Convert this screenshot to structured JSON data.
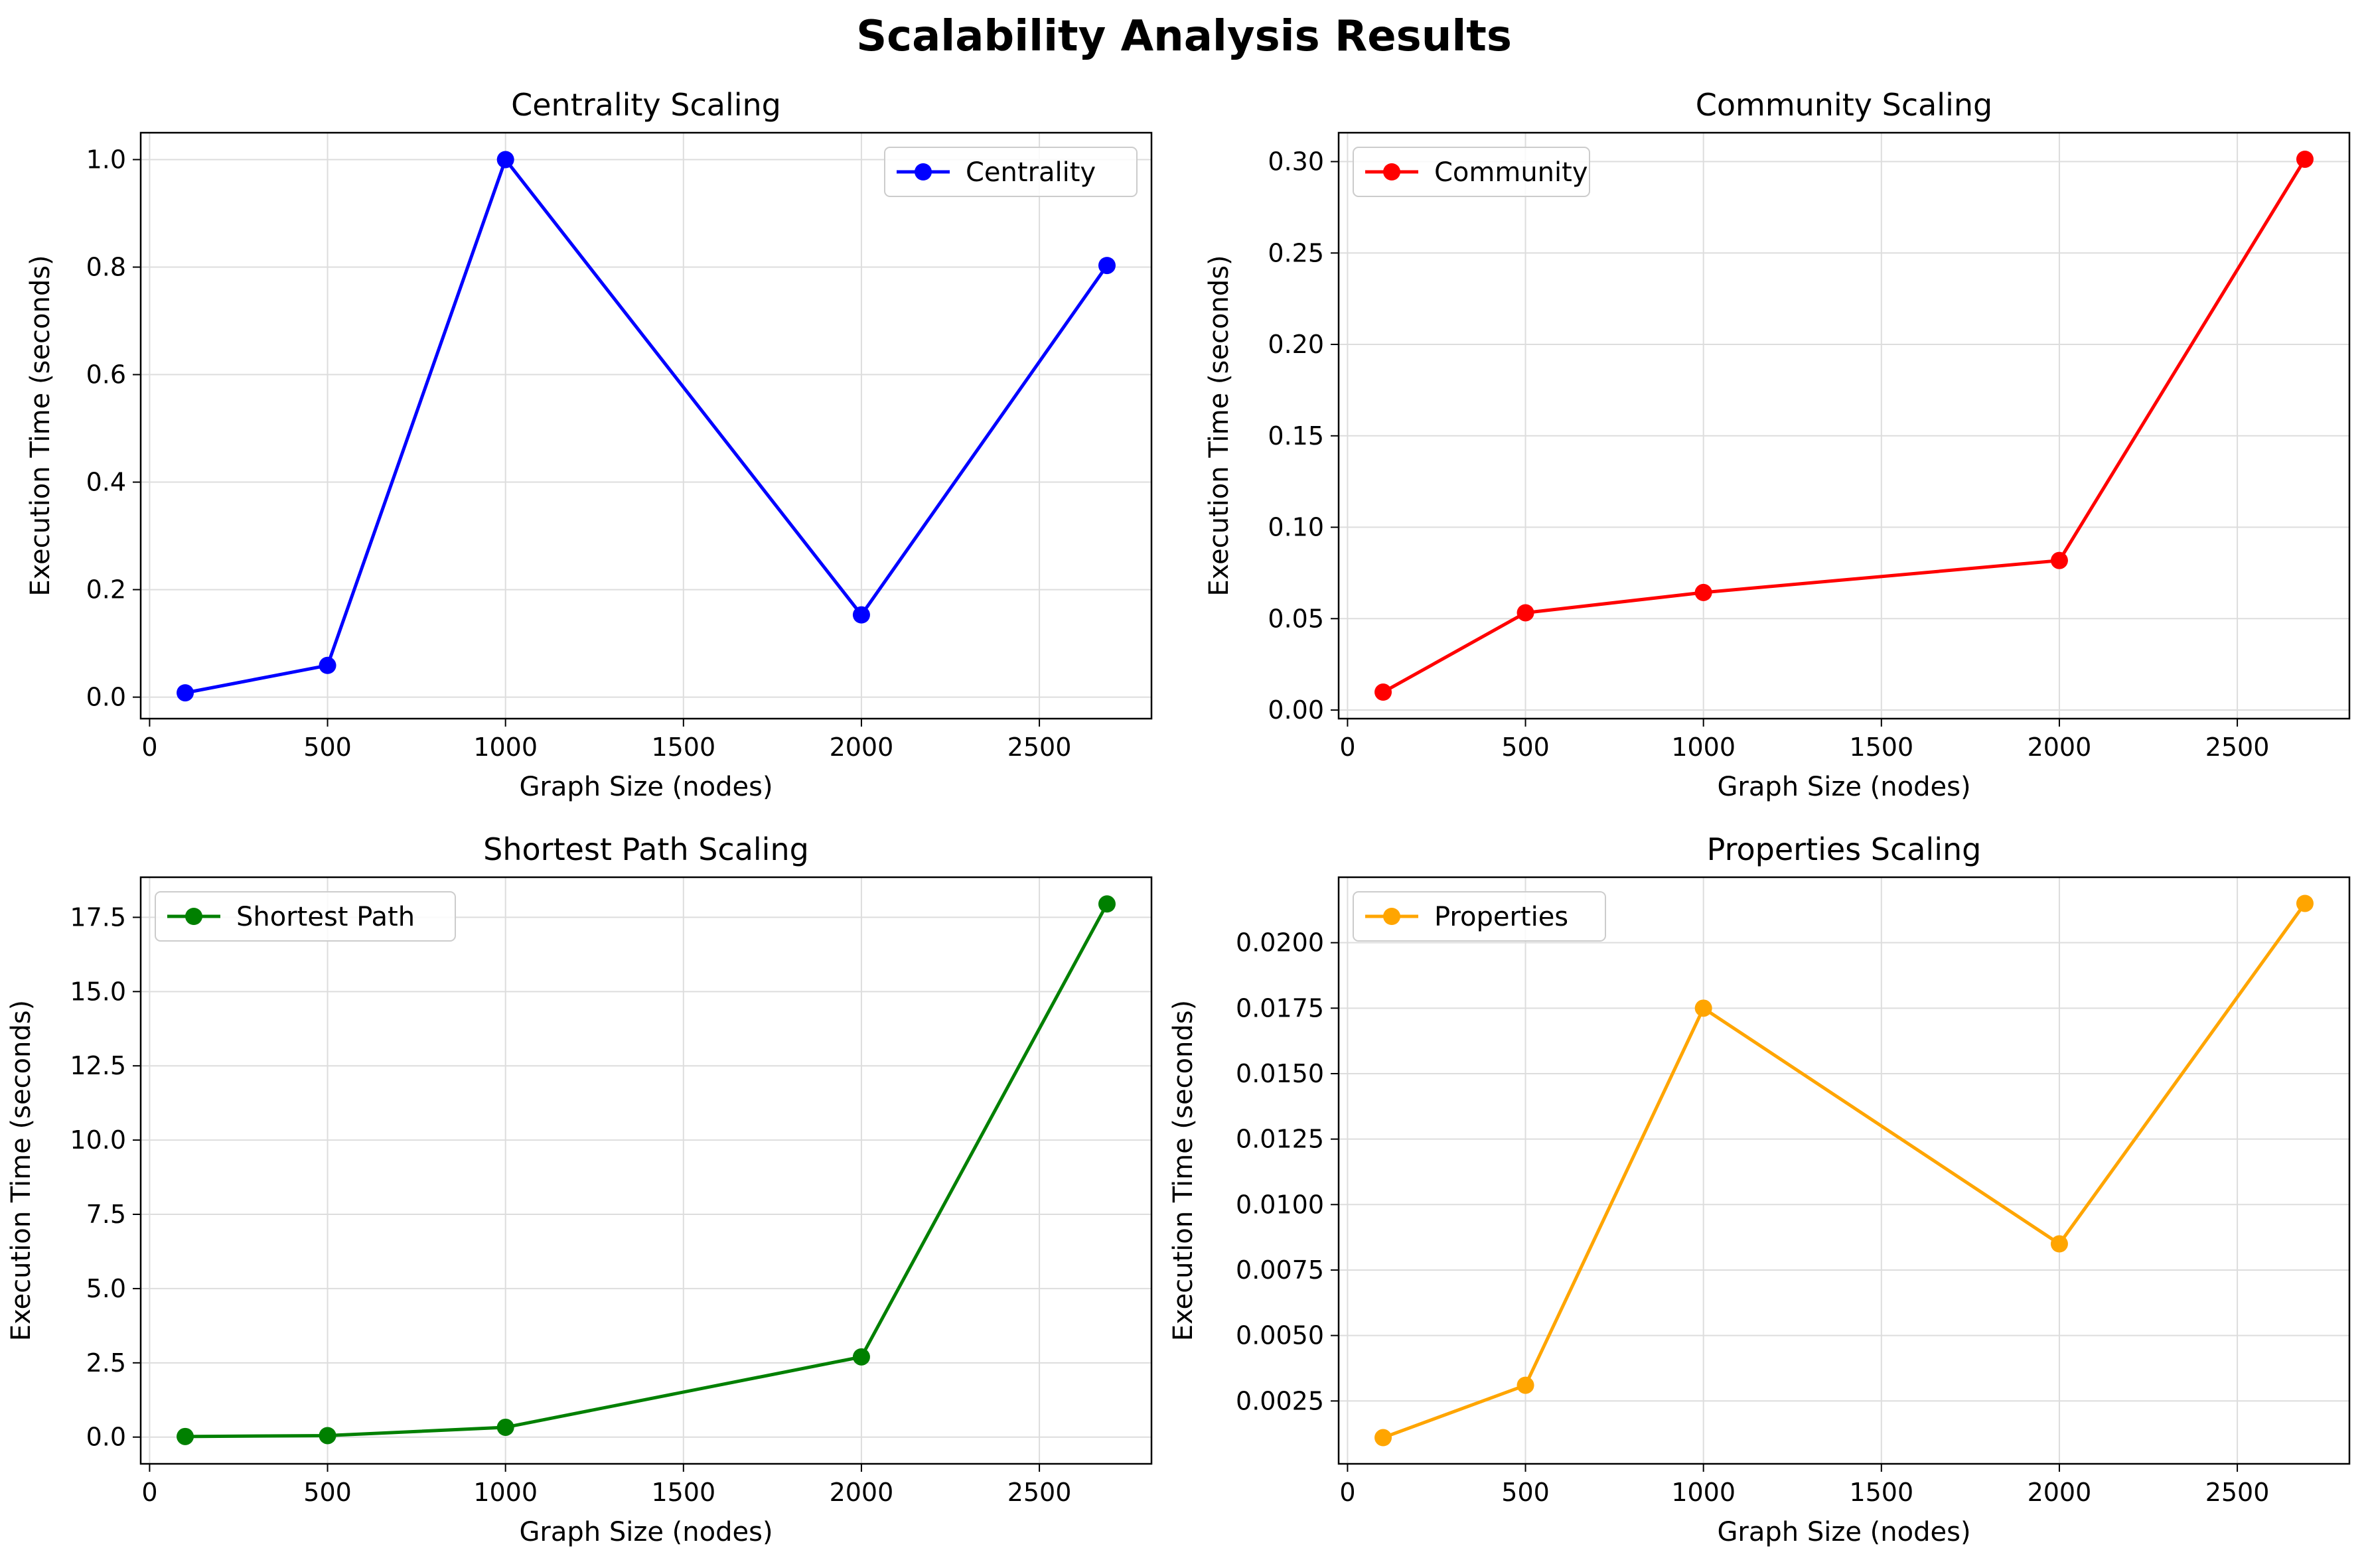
{
  "suptitle": "Scalability Analysis Results",
  "chart_data": [
    {
      "type": "line",
      "title": "Centrality Scaling",
      "xlabel": "Graph Size (nodes)",
      "ylabel": "Execution Time (seconds)",
      "x": [
        100,
        500,
        1000,
        2000,
        2690
      ],
      "series": [
        {
          "name": "Centrality",
          "color": "#0000ff",
          "values": [
            0.008,
            0.059,
            1.0,
            0.153,
            0.803
          ]
        }
      ],
      "xlim": [
        -25,
        2815
      ],
      "ylim": [
        -0.04,
        1.05
      ],
      "xticks": [
        0,
        500,
        1000,
        1500,
        2000,
        2500
      ],
      "xtick_labels": [
        "0",
        "500",
        "1000",
        "1500",
        "2000",
        "2500"
      ],
      "yticks": [
        0.0,
        0.2,
        0.4,
        0.6,
        0.8,
        1.0
      ],
      "ytick_labels": [
        "0.0",
        "0.2",
        "0.4",
        "0.6",
        "0.8",
        "1.0"
      ],
      "legend": "upper right",
      "grid": true
    },
    {
      "type": "line",
      "title": "Community Scaling",
      "xlabel": "Graph Size (nodes)",
      "ylabel": "Execution Time (seconds)",
      "x": [
        100,
        500,
        1000,
        2000,
        2690
      ],
      "series": [
        {
          "name": "Community",
          "color": "#ff0000",
          "values": [
            0.0098,
            0.0532,
            0.0643,
            0.0818,
            0.3013
          ]
        }
      ],
      "xlim": [
        -25,
        2815
      ],
      "ylim": [
        -0.0047,
        0.3158
      ],
      "xticks": [
        0,
        500,
        1000,
        1500,
        2000,
        2500
      ],
      "xtick_labels": [
        "0",
        "500",
        "1000",
        "1500",
        "2000",
        "2500"
      ],
      "yticks": [
        0.0,
        0.05,
        0.1,
        0.15,
        0.2,
        0.25,
        0.3
      ],
      "ytick_labels": [
        "0.00",
        "0.05",
        "0.10",
        "0.15",
        "0.20",
        "0.25",
        "0.30"
      ],
      "legend": "upper left",
      "grid": true
    },
    {
      "type": "line",
      "title": "Shortest Path Scaling",
      "xlabel": "Graph Size (nodes)",
      "ylabel": "Execution Time (seconds)",
      "x": [
        100,
        500,
        1000,
        2000,
        2690
      ],
      "series": [
        {
          "name": "Shortest Path",
          "color": "#008000",
          "values": [
            0.02,
            0.05,
            0.33,
            2.7,
            17.95
          ]
        }
      ],
      "xlim": [
        -25,
        2815
      ],
      "ylim": [
        -0.9,
        18.85
      ],
      "xticks": [
        0,
        500,
        1000,
        1500,
        2000,
        2500
      ],
      "xtick_labels": [
        "0",
        "500",
        "1000",
        "1500",
        "2000",
        "2500"
      ],
      "yticks": [
        0.0,
        2.5,
        5.0,
        7.5,
        10.0,
        12.5,
        15.0,
        17.5
      ],
      "ytick_labels": [
        "0.0",
        "2.5",
        "5.0",
        "7.5",
        "10.0",
        "12.5",
        "15.0",
        "17.5"
      ],
      "legend": "upper left",
      "grid": true
    },
    {
      "type": "line",
      "title": "Properties Scaling",
      "xlabel": "Graph Size (nodes)",
      "ylabel": "Execution Time (seconds)",
      "x": [
        100,
        500,
        1000,
        2000,
        2690
      ],
      "series": [
        {
          "name": "Properties",
          "color": "#ffa500",
          "values": [
            0.0011,
            0.0031,
            0.0175,
            0.0085,
            0.0215
          ]
        }
      ],
      "xlim": [
        -25,
        2815
      ],
      "ylim": [
        0.0001,
        0.0225
      ],
      "xticks": [
        0,
        500,
        1000,
        1500,
        2000,
        2500
      ],
      "xtick_labels": [
        "0",
        "500",
        "1000",
        "1500",
        "2000",
        "2500"
      ],
      "yticks": [
        0.0025,
        0.005,
        0.0075,
        0.01,
        0.0125,
        0.015,
        0.0175,
        0.02
      ],
      "ytick_labels": [
        "0.0025",
        "0.0050",
        "0.0075",
        "0.0100",
        "0.0125",
        "0.0150",
        "0.0175",
        "0.0200"
      ],
      "legend": "upper left",
      "grid": true
    }
  ]
}
